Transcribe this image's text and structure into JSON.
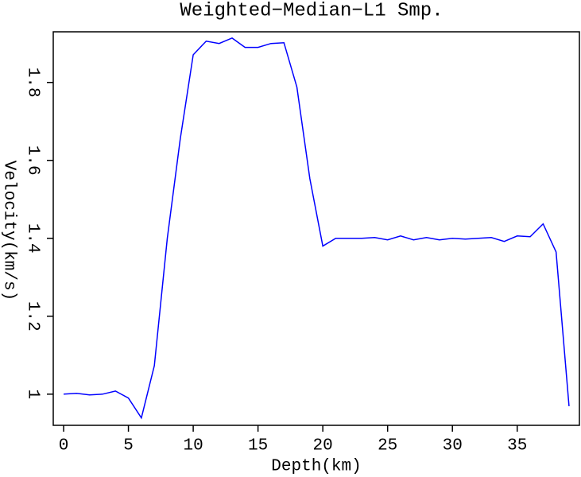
{
  "chart_data": {
    "type": "line",
    "title": "Weighted−Median−L1 Smp.",
    "x_label": "Depth(km)",
    "y_label": "Velocity(km/s)",
    "x": [
      0,
      1,
      2,
      3,
      4,
      5,
      6,
      7,
      8,
      9,
      10,
      11,
      12,
      13,
      14,
      15,
      16,
      17,
      18,
      19,
      20,
      21,
      22,
      23,
      24,
      25,
      26,
      27,
      28,
      29,
      30,
      31,
      32,
      33,
      34,
      35,
      36,
      37,
      38,
      39
    ],
    "values": [
      1.0,
      1.002,
      0.998,
      1.0,
      1.008,
      0.99,
      0.939,
      1.073,
      1.4,
      1.655,
      1.871,
      1.906,
      1.9,
      1.914,
      1.89,
      1.89,
      1.9,
      1.902,
      1.788,
      1.553,
      1.38,
      1.4,
      1.4,
      1.4,
      1.402,
      1.396,
      1.406,
      1.396,
      1.402,
      1.396,
      1.4,
      1.398,
      1.4,
      1.402,
      1.392,
      1.406,
      1.404,
      1.437,
      1.365,
      0.969
    ],
    "color": "#0000ff",
    "xlim": [
      -0.8,
      39.8
    ],
    "xticks": [
      0,
      5,
      10,
      15,
      20,
      25,
      30,
      35
    ],
    "ylim": [
      0.92,
      1.93
    ],
    "yticks": [
      1,
      1.2,
      1.4,
      1.6,
      1.8
    ],
    "grid": false
  }
}
